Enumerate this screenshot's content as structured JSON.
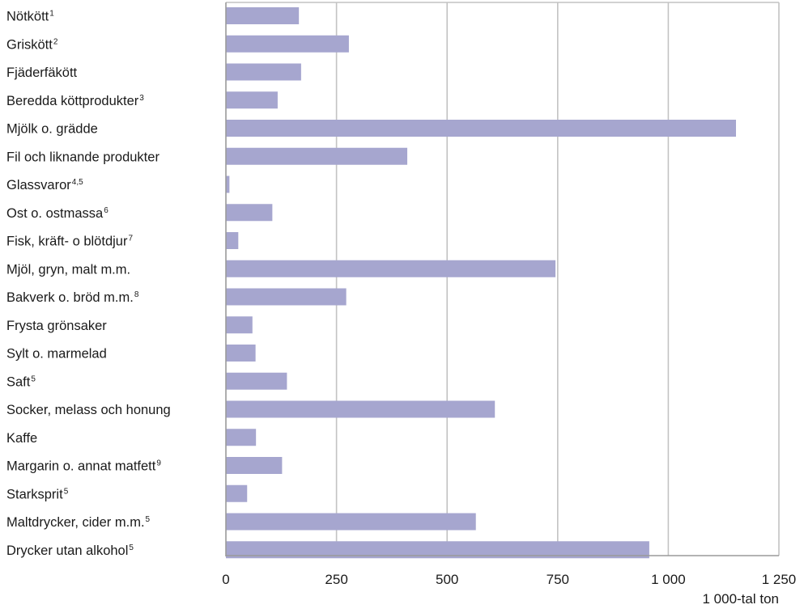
{
  "chart_data": {
    "type": "bar",
    "orientation": "horizontal",
    "categories": [
      {
        "label": "Nötkött",
        "sup": "1"
      },
      {
        "label": "Griskött",
        "sup": "2"
      },
      {
        "label": "Fjäderfäkött",
        "sup": ""
      },
      {
        "label": "Beredda köttprodukter",
        "sup": "3"
      },
      {
        "label": "Mjölk o. grädde",
        "sup": ""
      },
      {
        "label": "Fil och liknande produkter",
        "sup": ""
      },
      {
        "label": "Glassvaror",
        "sup": "4,5"
      },
      {
        "label": "Ost o. ostmassa",
        "sup": "6"
      },
      {
        "label": "Fisk, kräft- o blötdjur",
        "sup": "7"
      },
      {
        "label": "Mjöl, gryn, malt m.m.",
        "sup": ""
      },
      {
        "label": "Bakverk o. bröd m.m.",
        "sup": "8"
      },
      {
        "label": "Frysta grönsaker",
        "sup": ""
      },
      {
        "label": "Sylt o. marmelad",
        "sup": ""
      },
      {
        "label": "Saft",
        "sup": "5"
      },
      {
        "label": "Socker, melass och honung",
        "sup": ""
      },
      {
        "label": "Kaffe",
        "sup": ""
      },
      {
        "label": "Margarin o. annat matfett",
        "sup": "9"
      },
      {
        "label": "Starksprit",
        "sup": "5"
      },
      {
        "label": "Maltdrycker, cider m.m.",
        "sup": "5"
      },
      {
        "label": "Drycker utan alkohol",
        "sup": "5"
      }
    ],
    "values": [
      165,
      278,
      170,
      117,
      1153,
      410,
      8,
      105,
      28,
      745,
      272,
      60,
      67,
      138,
      608,
      68,
      127,
      48,
      565,
      957
    ],
    "xlim": [
      0,
      1250
    ],
    "xticks": [
      0,
      250,
      500,
      750,
      1000,
      1250
    ],
    "xtick_labels": [
      "0",
      "250",
      "500",
      "750",
      "1 000",
      "1 250"
    ],
    "xlabel": "1 000-tal ton",
    "grid": "vertical",
    "bar_color": "#a6a6cf",
    "grid_color": "#c3c3c3"
  }
}
